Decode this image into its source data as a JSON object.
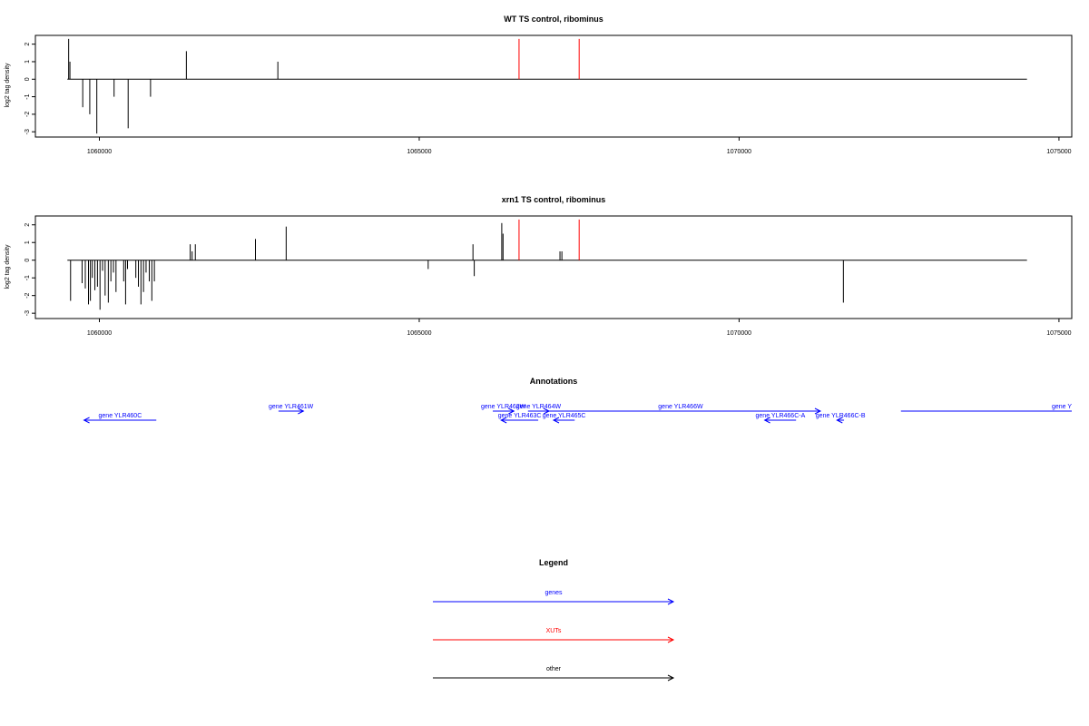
{
  "chart_data": [
    {
      "type": "bar",
      "title": "WT TS control, ribominus",
      "xlabel": "",
      "ylabel": "log2 tag density",
      "xlim": [
        1059000,
        1075200
      ],
      "ylim": [
        -3.3,
        2.5
      ],
      "x_ticks": [
        1060000,
        1065000,
        1070000,
        1075000
      ],
      "x_tick_labels": [
        "1060000",
        "1065000",
        "1070000",
        "1075000"
      ],
      "y_ticks": [
        -3,
        -2,
        -1,
        0,
        1,
        2
      ],
      "y_tick_labels": [
        "-3",
        "-2",
        "-1",
        "0",
        "1",
        "2"
      ],
      "baseline": {
        "x": [
          1059500,
          1074500
        ],
        "y": 0
      },
      "series": [
        {
          "kind": "other",
          "color": "#000000",
          "x": [
            1059520,
            1059540,
            1059740,
            1059850,
            1059960,
            1060230,
            1060450,
            1060800,
            1061360,
            1062790
          ],
          "y": [
            2.3,
            1.0,
            -1.6,
            -2.0,
            -3.1,
            -1.0,
            -2.8,
            -1.0,
            1.6,
            1.0
          ]
        },
        {
          "kind": "XUTs",
          "color": "#ff0000",
          "x": [
            1066560,
            1067500
          ],
          "y": [
            2.3,
            2.3
          ]
        }
      ]
    },
    {
      "type": "bar",
      "title": "xrn1 TS control, ribominus",
      "xlabel": "",
      "ylabel": "log2 tag density",
      "xlim": [
        1059000,
        1075200
      ],
      "ylim": [
        -3.3,
        2.5
      ],
      "x_ticks": [
        1060000,
        1065000,
        1070000,
        1075000
      ],
      "x_tick_labels": [
        "1060000",
        "1065000",
        "1070000",
        "1075000"
      ],
      "y_ticks": [
        -3,
        -2,
        -1,
        0,
        1,
        2
      ],
      "y_tick_labels": [
        "-3",
        "-2",
        "-1",
        "0",
        "1",
        "2"
      ],
      "baseline": {
        "x": [
          1059500,
          1074500
        ],
        "y": 0
      },
      "series": [
        {
          "kind": "other",
          "color": "#000000",
          "x": [
            1059550,
            1059730,
            1059780,
            1059830,
            1059860,
            1059890,
            1059930,
            1059970,
            1060010,
            1060050,
            1060090,
            1060140,
            1060180,
            1060220,
            1060260,
            1060380,
            1060410,
            1060440,
            1060570,
            1060610,
            1060650,
            1060690,
            1060730,
            1060780,
            1060820,
            1060860,
            1061420,
            1061450,
            1061500,
            1062440,
            1062920,
            1065140,
            1065840,
            1065860,
            1066290,
            1066310,
            1067200,
            1067230,
            1071630
          ],
          "y": [
            -2.3,
            -1.3,
            -1.6,
            -2.5,
            -2.3,
            -1.0,
            -1.7,
            -1.5,
            -2.8,
            -0.6,
            -2.0,
            -2.4,
            -1.2,
            -0.7,
            -1.8,
            -1.2,
            -2.5,
            -0.5,
            -1.0,
            -1.5,
            -2.5,
            -1.8,
            -0.7,
            -1.2,
            -2.3,
            -1.2,
            0.9,
            0.5,
            0.9,
            1.2,
            1.9,
            -0.5,
            0.9,
            -0.9,
            2.1,
            1.5,
            0.5,
            0.5,
            -2.4
          ]
        },
        {
          "kind": "XUTs",
          "color": "#ff0000",
          "x": [
            1066560,
            1067500
          ],
          "y": [
            2.3,
            2.3
          ]
        }
      ]
    }
  ],
  "annotations": {
    "title": "Annotations",
    "genes": [
      {
        "label": "gene YLR460C",
        "start": 1059760,
        "end": 1060890,
        "strand": "-",
        "row": 2
      },
      {
        "label": "gene YLR461W",
        "start": 1062800,
        "end": 1063190,
        "strand": "+",
        "row": 1
      },
      {
        "label": "gene YLR462W",
        "start": 1066150,
        "end": 1066480,
        "strand": "+",
        "row": 1
      },
      {
        "label": "gene YLR463C",
        "start": 1066280,
        "end": 1066860,
        "strand": "-",
        "row": 2
      },
      {
        "label": "gene YLR464W",
        "start": 1066700,
        "end": 1067030,
        "strand": "+",
        "row": 1
      },
      {
        "label": "gene YLR465C",
        "start": 1067100,
        "end": 1067430,
        "strand": "-",
        "row": 2
      },
      {
        "label": "gene YLR466W",
        "start": 1066900,
        "end": 1071270,
        "strand": "+",
        "row": 1
      },
      {
        "label": "gene YLR466C-A",
        "start": 1070400,
        "end": 1070890,
        "strand": "-",
        "row": 2
      },
      {
        "label": "gene YLR466C-B",
        "start": 1071530,
        "end": 1071640,
        "strand": "-",
        "row": 2
      },
      {
        "label": "gene Y",
        "start": 1072530,
        "end": 1075500,
        "strand": "+",
        "row": 1
      }
    ]
  },
  "legend": {
    "title": "Legend",
    "entries": [
      {
        "label": "genes",
        "color": "#0000ff"
      },
      {
        "label": "XUTs",
        "color": "#ff0000"
      },
      {
        "label": "other",
        "color": "#000000"
      }
    ]
  }
}
